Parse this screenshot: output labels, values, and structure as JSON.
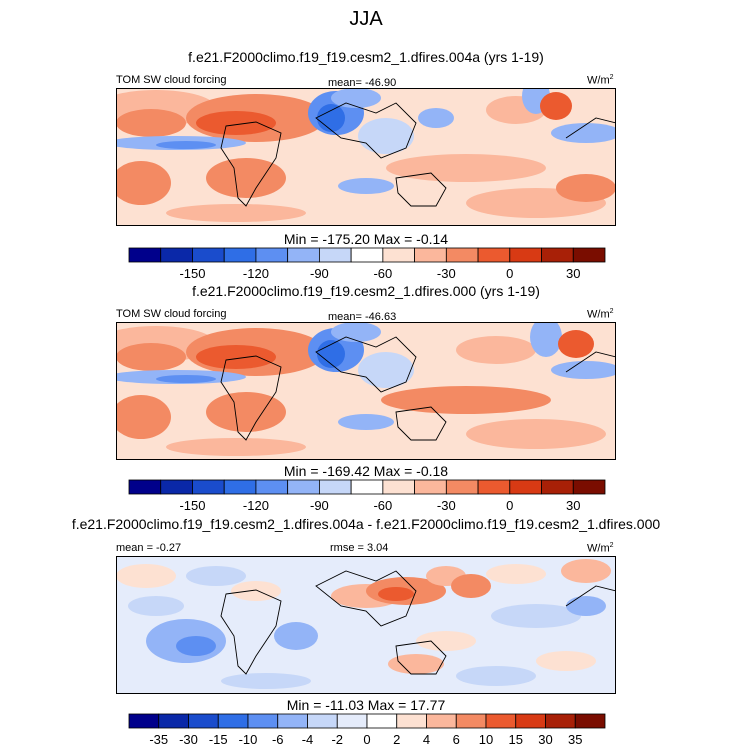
{
  "title": "JJA",
  "units_label": "W/m",
  "units_sup": "2",
  "colors": {
    "palette_abs": [
      "#00008b",
      "#0a28a8",
      "#1a4ccc",
      "#2f6ee6",
      "#5d8ff2",
      "#93b4f7",
      "#c6d7f8",
      "#ffffff",
      "#fde1d2",
      "#fbb79c",
      "#f38a63",
      "#eb5a2f",
      "#d83a14",
      "#a82007",
      "#7a0d00"
    ],
    "palette_diff": [
      "#00008b",
      "#0a28a8",
      "#1a4ccc",
      "#2f6ee6",
      "#5d8ff2",
      "#93b4f7",
      "#c6d7f8",
      "#e5ecfb",
      "#ffffff",
      "#fde1d2",
      "#fbb79c",
      "#f38a63",
      "#eb5a2f",
      "#d83a14",
      "#a82007",
      "#7a0d00"
    ]
  },
  "panels": [
    {
      "title": "f.e21.F2000climo.f19_f19.cesm2_1.dfires.004a (yrs 1-19)",
      "variable": "TOM SW cloud forcing",
      "stat_left": "",
      "stat_center": "mean= -46.90",
      "minmax": "Min = -175.20 Max =  -0.14",
      "colorbar_ticks": [
        "-150",
        "-120",
        "-90",
        "-60",
        "-30",
        "0",
        "30"
      ]
    },
    {
      "title": "f.e21.F2000climo.f19_f19.cesm2_1.dfires.000 (yrs 1-19)",
      "variable": "TOM SW cloud forcing",
      "stat_left": "",
      "stat_center": "mean= -46.63",
      "minmax": "Min = -169.42 Max =  -0.18",
      "colorbar_ticks": [
        "-150",
        "-120",
        "-90",
        "-60",
        "-30",
        "0",
        "30"
      ]
    },
    {
      "title": "f.e21.F2000climo.f19_f19.cesm2_1.dfires.004a - f.e21.F2000climo.f19_f19.cesm2_1.dfires.000",
      "variable": "",
      "stat_left": "mean =  -0.27",
      "stat_center": "rmse =  3.04",
      "minmax": "Min = -11.03 Max =  17.77",
      "colorbar_ticks": [
        "-35",
        "-30",
        "-15",
        "-10",
        "-6",
        "-4",
        "-2",
        "0",
        "2",
        "4",
        "6",
        "10",
        "15",
        "30",
        "35"
      ]
    }
  ],
  "chart_data": [
    {
      "type": "heatmap",
      "title": "f.e21.F2000climo.f19_f19.cesm2_1.dfires.004a (yrs 1-19)",
      "variable": "TOM SW cloud forcing",
      "units": "W/m2",
      "mean": -46.9,
      "min": -175.2,
      "max": -0.14,
      "colorbar_ticks": [
        -150,
        -120,
        -90,
        -60,
        -30,
        0,
        30
      ]
    },
    {
      "type": "heatmap",
      "title": "f.e21.F2000climo.f19_f19.cesm2_1.dfires.000 (yrs 1-19)",
      "variable": "TOM SW cloud forcing",
      "units": "W/m2",
      "mean": -46.63,
      "min": -169.42,
      "max": -0.18,
      "colorbar_ticks": [
        -150,
        -120,
        -90,
        -60,
        -30,
        0,
        30
      ]
    },
    {
      "type": "heatmap",
      "title": "f.e21.F2000climo.f19_f19.cesm2_1.dfires.004a - f.e21.F2000climo.f19_f19.cesm2_1.dfires.000",
      "units": "W/m2",
      "mean": -0.27,
      "rmse": 3.04,
      "min": -11.03,
      "max": 17.77,
      "colorbar_ticks": [
        -35,
        -30,
        -15,
        -10,
        -6,
        -4,
        -2,
        0,
        2,
        4,
        6,
        10,
        15,
        30,
        35
      ]
    }
  ]
}
